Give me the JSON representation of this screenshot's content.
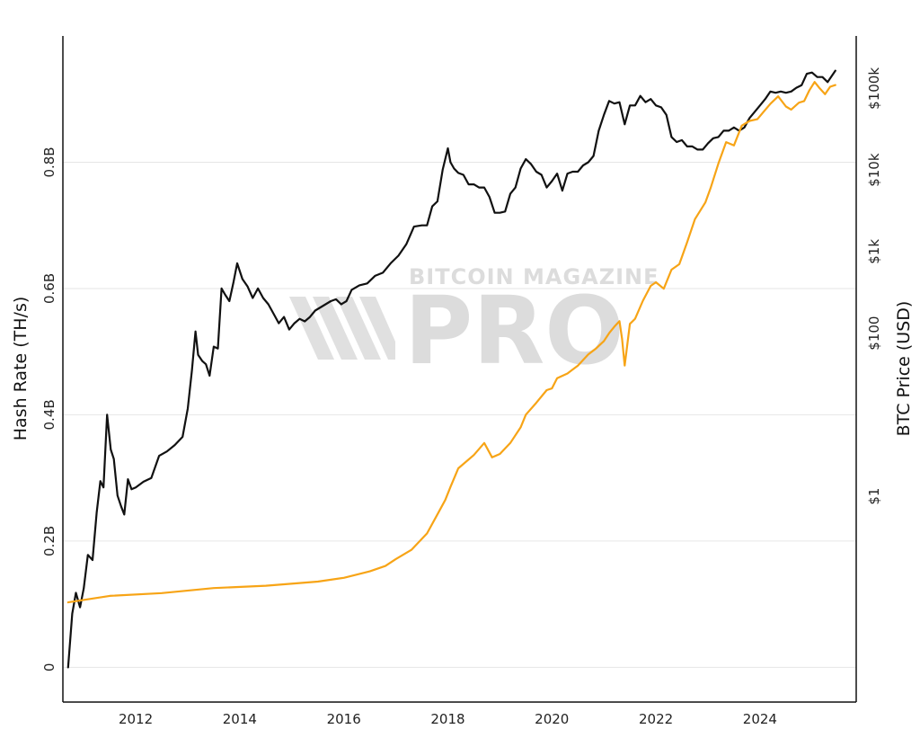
{
  "watermark": {
    "top": "BITCOIN MAGAZINE",
    "bottom": "PRO"
  },
  "chart_data": {
    "type": "line",
    "title": "",
    "xlabel": "",
    "ylabel": "Hash Rate (TH/s)",
    "y2label": "BTC Price (USD)",
    "xlim": [
      2010.6,
      2025.85
    ],
    "ylim": [
      -0.055,
      1.0
    ],
    "y2_scale": "log",
    "y2lim": [
      0.003,
      440000
    ],
    "x_ticks": [
      2012,
      2014,
      2016,
      2018,
      2020,
      2022,
      2024
    ],
    "x_tick_labels": [
      "2012",
      "2014",
      "2016",
      "2018",
      "2020",
      "2022",
      "2024"
    ],
    "y_ticks": [
      0,
      0.2,
      0.4,
      0.6,
      0.8
    ],
    "y_tick_labels": [
      "0",
      "0.2B",
      "0.4B",
      "0.6B",
      "0.8B"
    ],
    "y2_ticks": [
      1,
      100,
      1000,
      10000,
      100000
    ],
    "y2_tick_labels": [
      "$1",
      "$100",
      "$1k",
      "$10k",
      "$100k"
    ],
    "grid": true,
    "series": [
      {
        "color": "#111111",
        "axis": "left",
        "x": [
          2010.7,
          2010.78,
          2010.85,
          2010.93,
          2011.0,
          2011.08,
          2011.17,
          2011.25,
          2011.32,
          2011.38,
          2011.45,
          2011.52,
          2011.58,
          2011.65,
          2011.72,
          2011.78,
          2011.85,
          2011.92,
          2012.0,
          2012.15,
          2012.3,
          2012.45,
          2012.6,
          2012.75,
          2012.9,
          2013.0,
          2013.08,
          2013.15,
          2013.2,
          2013.28,
          2013.35,
          2013.42,
          2013.5,
          2013.58,
          2013.65,
          2013.72,
          2013.8,
          2013.88,
          2013.95,
          2014.05,
          2014.15,
          2014.25,
          2014.35,
          2014.45,
          2014.55,
          2014.65,
          2014.75,
          2014.85,
          2014.95,
          2015.05,
          2015.15,
          2015.25,
          2015.35,
          2015.45,
          2015.55,
          2015.65,
          2015.75,
          2015.85,
          2015.95,
          2016.05,
          2016.15,
          2016.3,
          2016.45,
          2016.6,
          2016.75,
          2016.9,
          2017.05,
          2017.2,
          2017.35,
          2017.5,
          2017.6,
          2017.7,
          2017.8,
          2017.9,
          2018.0,
          2018.05,
          2018.12,
          2018.2,
          2018.3,
          2018.4,
          2018.5,
          2018.6,
          2018.7,
          2018.8,
          2018.9,
          2019.0,
          2019.1,
          2019.2,
          2019.3,
          2019.4,
          2019.5,
          2019.6,
          2019.7,
          2019.8,
          2019.9,
          2020.0,
          2020.1,
          2020.2,
          2020.3,
          2020.4,
          2020.5,
          2020.6,
          2020.7,
          2020.8,
          2020.9,
          2021.0,
          2021.1,
          2021.2,
          2021.3,
          2021.4,
          2021.5,
          2021.6,
          2021.7,
          2021.8,
          2021.9,
          2022.0,
          2022.1,
          2022.2,
          2022.3,
          2022.4,
          2022.5,
          2022.6,
          2022.7,
          2022.8,
          2022.9,
          2023.0,
          2023.1,
          2023.2,
          2023.3,
          2023.4,
          2023.5,
          2023.6,
          2023.7,
          2023.8,
          2023.9,
          2024.0,
          2024.1,
          2024.2,
          2024.3,
          2024.4,
          2024.5,
          2024.6,
          2024.7,
          2024.8,
          2024.9,
          2025.0,
          2025.1,
          2025.2,
          2025.3,
          2025.45
        ],
        "y": [
          0.0,
          0.085,
          0.118,
          0.095,
          0.125,
          0.178,
          0.17,
          0.245,
          0.295,
          0.285,
          0.4,
          0.345,
          0.33,
          0.272,
          0.255,
          0.242,
          0.298,
          0.282,
          0.285,
          0.294,
          0.3,
          0.335,
          0.342,
          0.352,
          0.365,
          0.41,
          0.47,
          0.532,
          0.495,
          0.485,
          0.48,
          0.462,
          0.508,
          0.505,
          0.6,
          0.59,
          0.58,
          0.61,
          0.64,
          0.615,
          0.603,
          0.585,
          0.6,
          0.585,
          0.575,
          0.56,
          0.545,
          0.555,
          0.535,
          0.545,
          0.552,
          0.548,
          0.555,
          0.565,
          0.57,
          0.575,
          0.58,
          0.583,
          0.575,
          0.58,
          0.598,
          0.605,
          0.608,
          0.62,
          0.625,
          0.64,
          0.652,
          0.67,
          0.698,
          0.7,
          0.7,
          0.73,
          0.738,
          0.788,
          0.822,
          0.8,
          0.79,
          0.783,
          0.78,
          0.765,
          0.765,
          0.76,
          0.76,
          0.745,
          0.72,
          0.72,
          0.722,
          0.75,
          0.76,
          0.79,
          0.805,
          0.797,
          0.785,
          0.78,
          0.76,
          0.77,
          0.782,
          0.755,
          0.782,
          0.785,
          0.785,
          0.795,
          0.8,
          0.81,
          0.85,
          0.875,
          0.897,
          0.893,
          0.895,
          0.86,
          0.89,
          0.89,
          0.905,
          0.895,
          0.9,
          0.89,
          0.887,
          0.875,
          0.84,
          0.832,
          0.835,
          0.825,
          0.825,
          0.82,
          0.82,
          0.83,
          0.838,
          0.84,
          0.85,
          0.85,
          0.855,
          0.85,
          0.855,
          0.87,
          0.88,
          0.89,
          0.9,
          0.912,
          0.91,
          0.912,
          0.91,
          0.912,
          0.918,
          0.922,
          0.94,
          0.942,
          0.935,
          0.935,
          0.927,
          0.945
        ]
      },
      {
        "color": "#f7a416",
        "axis": "right",
        "x": [
          2010.7,
          2011.5,
          2012.5,
          2013.5,
          2014.5,
          2015.5,
          2016.0,
          2016.5,
          2016.8,
          2017.0,
          2017.3,
          2017.6,
          2017.8,
          2017.95,
          2018.05,
          2018.2,
          2018.5,
          2018.7,
          2018.85,
          2019.0,
          2019.2,
          2019.4,
          2019.5,
          2019.7,
          2019.9,
          2020.0,
          2020.1,
          2020.3,
          2020.5,
          2020.7,
          2020.85,
          2021.0,
          2021.1,
          2021.2,
          2021.3,
          2021.35,
          2021.4,
          2021.5,
          2021.6,
          2021.75,
          2021.9,
          2022.0,
          2022.15,
          2022.3,
          2022.45,
          2022.6,
          2022.75,
          2022.95,
          2023.05,
          2023.2,
          2023.35,
          2023.5,
          2023.65,
          2023.8,
          2023.95,
          2024.05,
          2024.2,
          2024.35,
          2024.5,
          2024.6,
          2024.75,
          2024.85,
          2024.95,
          2025.05,
          2025.15,
          2025.25,
          2025.35,
          2025.45
        ],
        "y": [
          0.05,
          0.06,
          0.065,
          0.075,
          0.08,
          0.09,
          0.1,
          0.12,
          0.14,
          0.17,
          0.22,
          0.35,
          0.6,
          0.9,
          1.3,
          2.2,
          3.2,
          4.5,
          3.0,
          3.3,
          4.5,
          7.0,
          10,
          14,
          20,
          21,
          28,
          32,
          40,
          55,
          65,
          80,
          100,
          120,
          140,
          85,
          40,
          130,
          150,
          250,
          380,
          420,
          350,
          600,
          700,
          1300,
          2500,
          4000,
          6000,
          12000,
          22000,
          20000,
          35000,
          40000,
          42000,
          50000,
          65000,
          80000,
          60000,
          55000,
          67000,
          70000,
          95000,
          120000,
          100000,
          85000,
          105000,
          110000
        ]
      }
    ]
  }
}
